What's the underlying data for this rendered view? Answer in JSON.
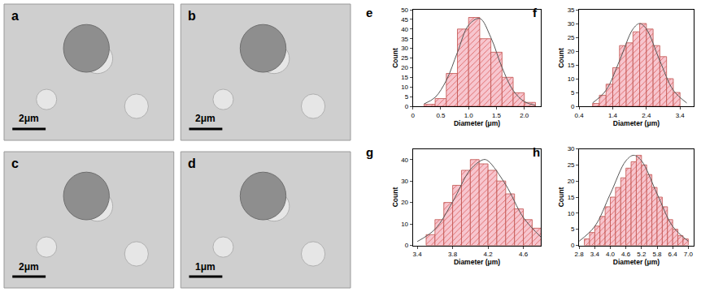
{
  "chart_data": [
    {
      "type": "image",
      "label": "a",
      "scale_bar": "2μm"
    },
    {
      "type": "image",
      "label": "b",
      "scale_bar": "2μm"
    },
    {
      "type": "image",
      "label": "c",
      "scale_bar": "2μm"
    },
    {
      "type": "image",
      "label": "d",
      "scale_bar": "1μm"
    },
    {
      "type": "histogram",
      "label": "e",
      "x_label": "Diameter (μm)",
      "y_label": "Count",
      "color": "#f7c6cf",
      "bins": [
        0.2,
        0.4,
        0.6,
        0.8,
        1.0,
        1.2,
        1.4,
        1.6,
        1.8,
        2.0,
        2.2
      ],
      "counts": [
        1,
        4,
        17,
        40,
        46,
        35,
        28,
        15,
        7,
        2
      ],
      "fit": {
        "x": [
          0.2,
          0.4,
          0.6,
          0.8,
          1.0,
          1.2,
          1.4,
          1.6,
          1.8,
          2.0,
          2.2
        ],
        "y": [
          1.2,
          4.6,
          13.4,
          27.9,
          42,
          45.5,
          35.6,
          20.1,
          8.2,
          2.4,
          0.5
        ]
      },
      "xlim": [
        0,
        2.3
      ],
      "xticks": [
        0,
        0.5,
        {
          "value": 1,
          "label": "1.0"
        },
        1.5,
        {
          "value": 2,
          "label": "2.0"
        }
      ],
      "ylim": [
        0,
        50
      ],
      "yticks": [
        0,
        5,
        10,
        15,
        20,
        25,
        30,
        35,
        40,
        45,
        50
      ]
    },
    {
      "type": "histogram",
      "label": "f",
      "x_label": "Diameter (μm)",
      "y_label": "Count",
      "color": "#f7c6cf",
      "bins": [
        0.8,
        1.0,
        1.2,
        1.4,
        1.6,
        1.8,
        2.0,
        2.2,
        2.4,
        2.6,
        2.8,
        3.0,
        3.2,
        3.4
      ],
      "counts": [
        1,
        4,
        8,
        14,
        22,
        23,
        27,
        30,
        28,
        22,
        18,
        10,
        5
      ],
      "fit": {
        "x": [
          0.8,
          1.2,
          1.6,
          2.0,
          2.2,
          2.4,
          2.8,
          3.2,
          3.6
        ],
        "y": [
          1.2,
          5.8,
          16.5,
          28,
          30,
          28,
          16.5,
          5.8,
          1.2
        ]
      },
      "xlim": [
        0.4,
        3.8
      ],
      "xticks": [
        0.4,
        1.4,
        2.4,
        3.4
      ],
      "ylim": [
        0,
        35
      ],
      "yticks": [
        0,
        5,
        10,
        15,
        20,
        25,
        30,
        35
      ]
    },
    {
      "type": "histogram",
      "label": "g",
      "x_label": "Diameter (μm)",
      "y_label": "Count",
      "color": "#f7c6cf",
      "bins": [
        3.5,
        3.6,
        3.7,
        3.8,
        3.9,
        4.0,
        4.1,
        4.2,
        4.3,
        4.4,
        4.5,
        4.6,
        4.7,
        4.8
      ],
      "counts": [
        5,
        12,
        20,
        28,
        35,
        40,
        38,
        35,
        30,
        24,
        17,
        12,
        8
      ],
      "fit": {
        "x": [
          3.4,
          3.6,
          3.8,
          4.0,
          4.15,
          4.2,
          4.4,
          4.6,
          4.8
        ],
        "y": [
          1.8,
          7.5,
          20.3,
          35.3,
          40,
          39.4,
          28.3,
          13,
          3.8
        ]
      },
      "xlim": [
        3.35,
        4.8
      ],
      "xticks": [
        3.4,
        3.8,
        4.2,
        4.6
      ],
      "ylim": [
        0,
        45
      ],
      "yticks": [
        0,
        10,
        20,
        30,
        40
      ]
    },
    {
      "type": "histogram",
      "label": "h",
      "x_label": "Diameter (μm)",
      "y_label": "Count",
      "color": "#f7c6cf",
      "bins": [
        3.0,
        3.2,
        3.4,
        3.6,
        3.8,
        4.0,
        4.2,
        4.4,
        4.6,
        4.8,
        5.0,
        5.2,
        5.4,
        5.6,
        5.8,
        6.0,
        6.2,
        6.4,
        6.6,
        6.8,
        7.0
      ],
      "counts": [
        2,
        4,
        6,
        9,
        12,
        15,
        18,
        21,
        24,
        26,
        28,
        25,
        22,
        18,
        15,
        12,
        8,
        5,
        3,
        2
      ],
      "fit": {
        "x": [
          2.8,
          3.4,
          4.0,
          4.6,
          4.9,
          5.2,
          5.8,
          6.4,
          7.0
        ],
        "y": [
          1.3,
          5.9,
          16,
          26.3,
          28,
          26.3,
          16,
          5.9,
          1.3
        ]
      },
      "xlim": [
        2.8,
        7.2
      ],
      "xticks": [
        2.8,
        3.4,
        {
          "value": 4,
          "label": "4.0"
        },
        4.6,
        5.2,
        5.8,
        6.4,
        {
          "value": 7,
          "label": "7.0"
        }
      ],
      "ylim": [
        0,
        30
      ],
      "yticks": [
        0,
        5,
        10,
        15,
        20,
        25,
        30
      ]
    }
  ]
}
